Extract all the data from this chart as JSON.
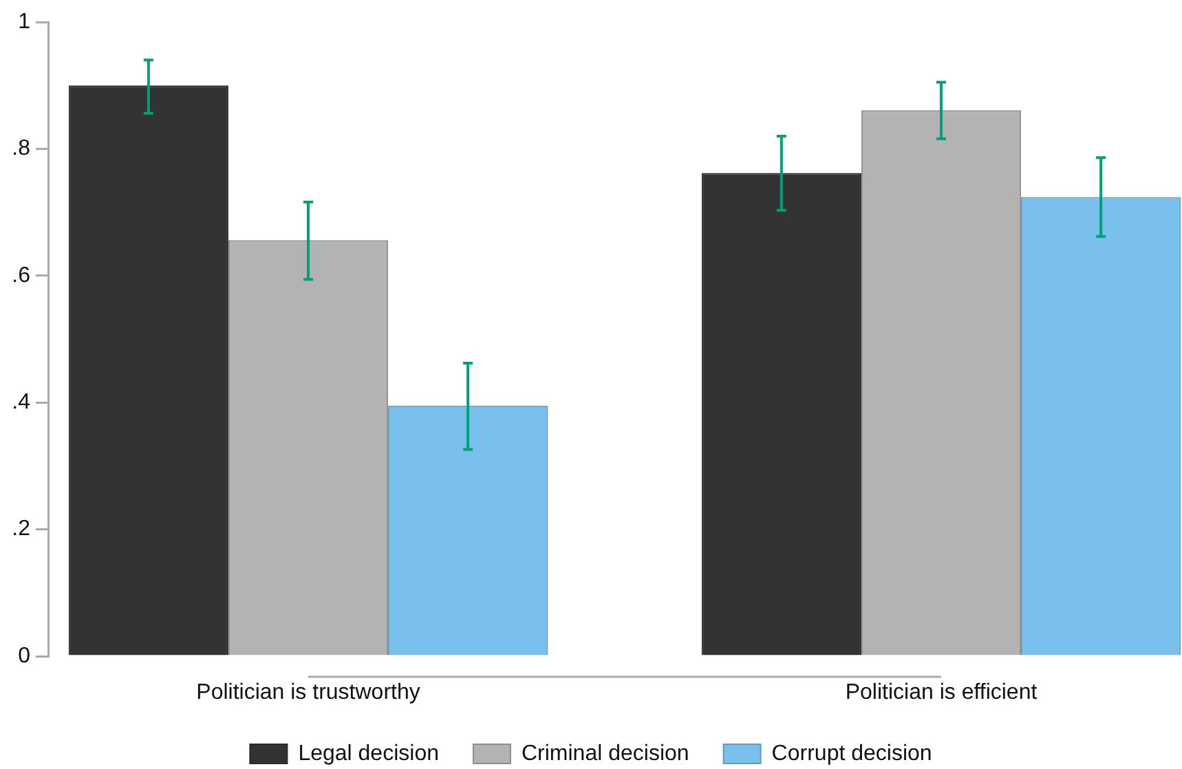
{
  "chart_data": {
    "type": "bar",
    "categories": [
      "Politician is trustworthy",
      "Politician is efficient"
    ],
    "series": [
      {
        "name": "Legal decision",
        "color": "#333333",
        "values": [
          0.9,
          0.762
        ],
        "errors": [
          [
            0.856,
            0.94
          ],
          [
            0.703,
            0.82
          ]
        ]
      },
      {
        "name": "Criminal decision",
        "color": "#b3b3b3",
        "values": [
          0.656,
          0.861
        ],
        "errors": [
          [
            0.594,
            0.716
          ],
          [
            0.816,
            0.905
          ]
        ]
      },
      {
        "name": "Corrupt decision",
        "color": "#79c1ec",
        "values": [
          0.395,
          0.724
        ],
        "errors": [
          [
            0.326,
            0.462
          ],
          [
            0.662,
            0.786
          ]
        ]
      }
    ],
    "ylim": [
      0,
      1
    ],
    "yticks": [
      0,
      {
        "value": 0.2,
        "label": ".2"
      },
      {
        "value": 0.4,
        "label": ".4"
      },
      {
        "value": 0.6,
        "label": ".6"
      },
      {
        "value": 0.8,
        "label": ".8"
      },
      1
    ],
    "grid": false,
    "legend": "bottom"
  }
}
